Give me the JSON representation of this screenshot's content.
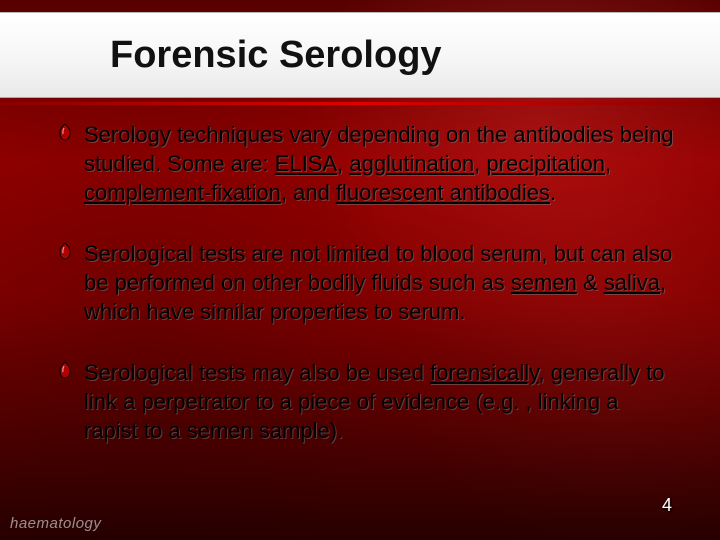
{
  "title": "Forensic Serology",
  "title_fontsize": 38,
  "body_fontsize": 22,
  "bullets": [
    {
      "segments": [
        {
          "t": "Serology techniques vary depending on the antibodies being studied. Some are: "
        },
        {
          "t": "ELISA",
          "u": true
        },
        {
          "t": ", "
        },
        {
          "t": "agglutination",
          "u": true
        },
        {
          "t": ", "
        },
        {
          "t": "precipitation",
          "u": true
        },
        {
          "t": ", "
        },
        {
          "t": "complement-fixation",
          "u": true
        },
        {
          "t": ", and "
        },
        {
          "t": "fluorescent antibodies",
          "u": true
        },
        {
          "t": "."
        }
      ]
    },
    {
      "segments": [
        {
          "t": "Serological tests are not limited to blood serum, but can also be performed on other bodily fluids such as "
        },
        {
          "t": "semen",
          "u": true
        },
        {
          "t": " & "
        },
        {
          "t": "saliva",
          "u": true
        },
        {
          "t": ", which have similar properties to serum."
        }
      ]
    },
    {
      "segments": [
        {
          "t": "Serological tests may also be used "
        },
        {
          "t": "forensically",
          "u": true
        },
        {
          "t": ", generally to link a perpetrator to a piece of evidence (e.g. , linking a rapist to a semen sample)."
        }
      ]
    }
  ],
  "bullet_glyph_color": "#b00000",
  "bullet_glyph_stroke": "#000000",
  "page_number": "4",
  "page_number_fontsize": 18,
  "watermark": "haematology",
  "watermark_fontsize": 15
}
